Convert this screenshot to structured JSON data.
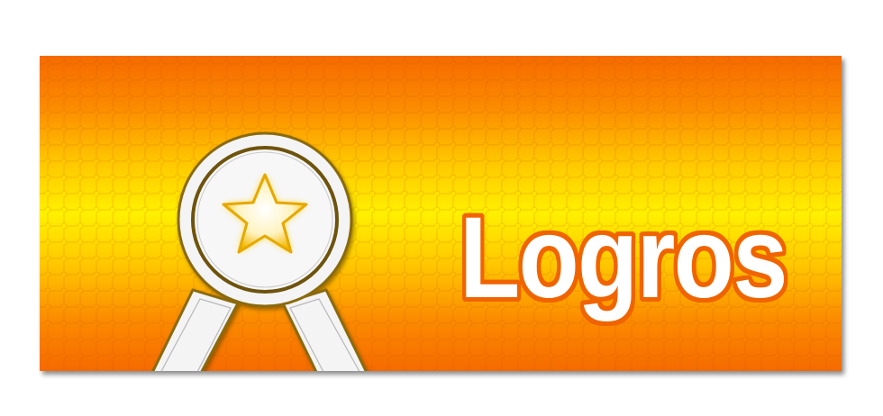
{
  "banner": {
    "title": "Logros",
    "badge_icon": "award-ribbon-star-icon",
    "colors": {
      "gradient_edge": "#f56a00",
      "gradient_center": "#fff000",
      "title_fill": "#ffffff",
      "title_outline": "#f06400",
      "badge_fill": "#f4f4f4",
      "badge_outline": "#8a6a10",
      "star": "#f7c820"
    }
  }
}
